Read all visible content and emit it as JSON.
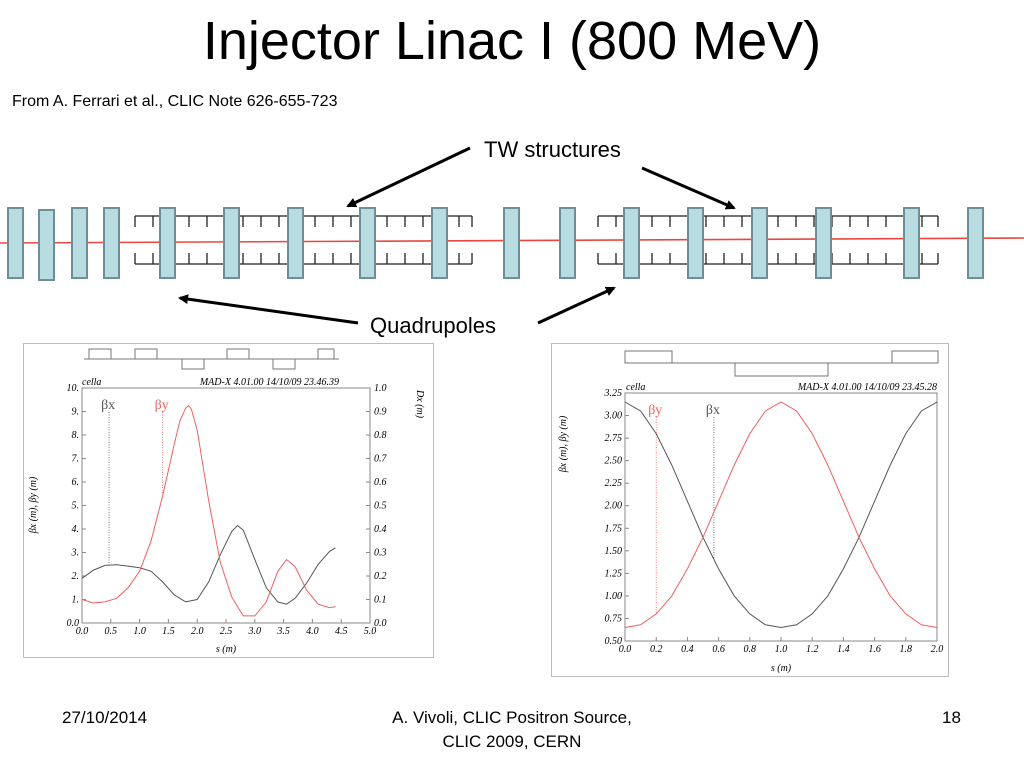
{
  "slide": {
    "title": "Injector Linac I (800 MeV)",
    "source_note": "From A. Ferrari et al.,  CLIC Note 626-655-723",
    "label_tw": "TW structures",
    "label_quad": "Quadrupoles",
    "footer_date": "27/10/2014",
    "footer_center_line1": "A. Vivoli,  CLIC Positron Source,",
    "footer_center_line2": "CLIC 2009, CERN",
    "footer_page": "18"
  },
  "colors": {
    "quadrupole_fill": "#b7dde3",
    "quadrupole_stroke": "#6e8f95",
    "beamline": "#e8483f",
    "beta_x": "#555555",
    "beta_y": "#f06060"
  },
  "chart_data": [
    {
      "type": "line",
      "header_left": "cella",
      "header_right": "MAD-X 4.01.00  14/10/09 23.46.39",
      "xlabel": "s (m)",
      "ylabel": "βx (m), βy (m)",
      "ylabel_right": "Dx (m)",
      "xlim": [
        0,
        5
      ],
      "ylim": [
        0,
        10
      ],
      "xticks": [
        "0.0",
        "0.5",
        "1.0",
        "1.5",
        "2.0",
        "2.5",
        "3.0",
        "3.5",
        "4.0",
        "4.5",
        "5.0"
      ],
      "yticks": [
        "0.0",
        "1.",
        "2.",
        "3.",
        "4.",
        "5.",
        "6.",
        "7.",
        "8.",
        "9.",
        "10."
      ],
      "yticks_right": [
        "0.0",
        "0.1",
        "0.2",
        "0.3",
        "0.4",
        "0.5",
        "0.6",
        "0.7",
        "0.8",
        "0.9",
        "1.0"
      ],
      "markers": [
        {
          "label": "βx",
          "x": 0.47
        },
        {
          "label": "βy",
          "x": 1.4
        }
      ],
      "series": [
        {
          "name": "βx",
          "x": [
            0.0,
            0.2,
            0.4,
            0.6,
            0.8,
            1.0,
            1.2,
            1.4,
            1.6,
            1.8,
            2.0,
            2.2,
            2.4,
            2.6,
            2.7,
            2.8,
            3.0,
            3.2,
            3.4,
            3.55,
            3.7,
            3.9,
            4.1,
            4.3,
            4.4
          ],
          "y": [
            1.9,
            2.25,
            2.45,
            2.48,
            2.42,
            2.35,
            2.2,
            1.75,
            1.2,
            0.9,
            1.0,
            1.75,
            2.9,
            3.9,
            4.15,
            3.95,
            2.7,
            1.5,
            0.9,
            0.8,
            1.05,
            1.7,
            2.5,
            3.05,
            3.2
          ]
        },
        {
          "name": "βy",
          "x": [
            0.0,
            0.2,
            0.4,
            0.6,
            0.8,
            1.0,
            1.2,
            1.4,
            1.6,
            1.7,
            1.8,
            1.85,
            1.9,
            2.0,
            2.2,
            2.4,
            2.6,
            2.8,
            3.0,
            3.2,
            3.4,
            3.55,
            3.7,
            3.9,
            4.1,
            4.3,
            4.4
          ],
          "y": [
            1.0,
            0.85,
            0.9,
            1.05,
            1.5,
            2.2,
            3.5,
            5.4,
            7.6,
            8.6,
            9.15,
            9.25,
            9.1,
            8.2,
            5.2,
            2.6,
            1.1,
            0.3,
            0.3,
            0.9,
            2.2,
            2.7,
            2.4,
            1.4,
            0.8,
            0.65,
            0.7
          ]
        }
      ]
    },
    {
      "type": "line",
      "header_left": "cella",
      "header_right": "MAD-X 4.01.00  14/10/09 23.45.28",
      "xlabel": "s (m)",
      "ylabel": "βx (m), βy (m)",
      "xlim": [
        0,
        2
      ],
      "ylim": [
        0.5,
        3.25
      ],
      "xticks": [
        "0.0",
        "0.2",
        "0.4",
        "0.6",
        "0.8",
        "1.0",
        "1.2",
        "1.4",
        "1.6",
        "1.8",
        "2.0"
      ],
      "yticks": [
        "0.50",
        "0.75",
        "1.00",
        "1.25",
        "1.50",
        "1.75",
        "2.00",
        "2.25",
        "2.50",
        "2.75",
        "3.00",
        "3.25"
      ],
      "markers": [
        {
          "label": "βy",
          "x": 0.2
        },
        {
          "label": "βx",
          "x": 0.57
        }
      ],
      "series": [
        {
          "name": "βx",
          "x": [
            0.0,
            0.1,
            0.2,
            0.3,
            0.4,
            0.5,
            0.6,
            0.7,
            0.8,
            0.9,
            1.0,
            1.1,
            1.2,
            1.3,
            1.4,
            1.5,
            1.6,
            1.7,
            1.8,
            1.9,
            2.0
          ],
          "y": [
            3.15,
            3.05,
            2.8,
            2.45,
            2.05,
            1.65,
            1.3,
            1.0,
            0.8,
            0.68,
            0.65,
            0.68,
            0.8,
            1.0,
            1.3,
            1.65,
            2.05,
            2.45,
            2.8,
            3.05,
            3.15
          ]
        },
        {
          "name": "βy",
          "x": [
            0.0,
            0.1,
            0.2,
            0.3,
            0.4,
            0.5,
            0.6,
            0.7,
            0.8,
            0.9,
            1.0,
            1.1,
            1.2,
            1.3,
            1.4,
            1.5,
            1.6,
            1.7,
            1.8,
            1.9,
            2.0
          ],
          "y": [
            0.65,
            0.68,
            0.8,
            1.0,
            1.3,
            1.65,
            2.05,
            2.45,
            2.8,
            3.05,
            3.15,
            3.05,
            2.8,
            2.45,
            2.05,
            1.65,
            1.3,
            1.0,
            0.8,
            0.68,
            0.65
          ]
        }
      ]
    }
  ]
}
